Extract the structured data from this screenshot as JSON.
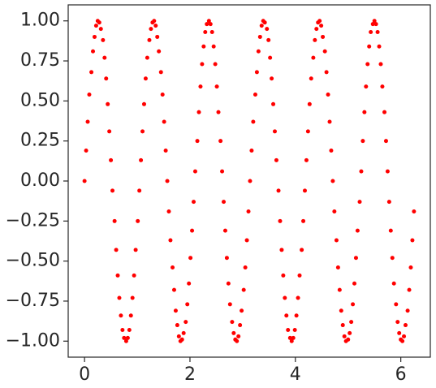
{
  "chart_data": {
    "type": "scatter",
    "color": "#ff0000",
    "x": [
      0,
      0.03,
      0.06,
      0.09,
      0.13,
      0.16,
      0.19,
      0.22,
      0.25,
      0.28,
      0.31,
      0.35,
      0.38,
      0.41,
      0.44,
      0.47,
      0.5,
      0.53,
      0.57,
      0.6,
      0.63,
      0.66,
      0.69,
      0.72,
      0.75,
      0.79,
      0.82,
      0.85,
      0.88,
      0.91,
      0.94,
      0.97,
      1.01,
      1.04,
      1.07,
      1.1,
      1.13,
      1.16,
      1.19,
      1.23,
      1.26,
      1.29,
      1.32,
      1.35,
      1.38,
      1.41,
      1.45,
      1.48,
      1.51,
      1.54,
      1.57,
      1.6,
      1.63,
      1.67,
      1.7,
      1.73,
      1.76,
      1.79,
      1.82,
      1.85,
      1.88,
      1.92,
      1.95,
      1.98,
      2.01,
      2.04,
      2.07,
      2.1,
      2.14,
      2.17,
      2.2,
      2.23,
      2.26,
      2.29,
      2.32,
      2.36,
      2.39,
      2.42,
      2.45,
      2.48,
      2.51,
      2.54,
      2.58,
      2.61,
      2.64,
      2.67,
      2.7,
      2.73,
      2.76,
      2.8,
      2.83,
      2.86,
      2.89,
      2.92,
      2.95,
      2.98,
      3.02,
      3.05,
      3.08,
      3.11,
      3.14,
      3.17,
      3.2,
      3.24,
      3.27,
      3.3,
      3.33,
      3.36,
      3.39,
      3.42,
      3.46,
      3.49,
      3.52,
      3.55,
      3.58,
      3.61,
      3.64,
      3.68,
      3.71,
      3.74,
      3.77,
      3.8,
      3.83,
      3.86,
      3.9,
      3.93,
      3.96,
      3.99,
      4.02,
      4.05,
      4.08,
      4.12,
      4.15,
      4.18,
      4.21,
      4.24,
      4.27,
      4.3,
      4.34,
      4.37,
      4.4,
      4.43,
      4.46,
      4.49,
      4.52,
      4.56,
      4.59,
      4.62,
      4.65,
      4.68,
      4.71,
      4.74,
      4.78,
      4.81,
      4.84,
      4.87,
      4.9,
      4.93,
      4.96,
      5,
      5.03,
      5.06,
      5.09,
      5.12,
      5.15,
      5.18,
      5.22,
      5.25,
      5.28,
      5.31,
      5.34,
      5.37,
      5.4,
      5.43,
      5.47,
      5.5,
      5.53,
      5.56,
      5.59,
      5.62,
      5.65,
      5.69,
      5.72,
      5.75,
      5.78,
      5.81,
      5.84,
      5.87,
      5.91,
      5.94,
      5.97,
      6,
      6.03,
      6.06,
      6.09,
      6.13,
      6.16,
      6.19,
      6.22,
      6.25
    ],
    "values": [
      0,
      0.19,
      0.37,
      0.54,
      0.68,
      0.81,
      0.9,
      0.97,
      1,
      0.99,
      0.95,
      0.88,
      0.77,
      0.64,
      0.48,
      0.31,
      0.13,
      -0.06,
      -0.25,
      -0.43,
      -0.59,
      -0.73,
      -0.84,
      -0.93,
      -0.98,
      -1,
      -0.98,
      -0.93,
      -0.84,
      -0.73,
      -0.59,
      -0.43,
      -0.25,
      -0.06,
      0.13,
      0.31,
      0.48,
      0.64,
      0.77,
      0.88,
      0.95,
      0.99,
      1,
      0.97,
      0.9,
      0.81,
      0.68,
      0.54,
      0.37,
      0.19,
      0,
      -0.19,
      -0.37,
      -0.54,
      -0.68,
      -0.81,
      -0.9,
      -0.97,
      -1,
      -0.99,
      -0.95,
      -0.88,
      -0.77,
      -0.64,
      -0.48,
      -0.31,
      -0.13,
      0.06,
      0.25,
      0.43,
      0.59,
      0.73,
      0.84,
      0.93,
      0.98,
      1,
      0.98,
      0.93,
      0.84,
      0.73,
      0.59,
      0.43,
      0.25,
      0.06,
      -0.13,
      -0.31,
      -0.48,
      -0.64,
      -0.77,
      -0.88,
      -0.95,
      -0.99,
      -1,
      -0.97,
      -0.9,
      -0.81,
      -0.68,
      -0.54,
      -0.37,
      -0.19,
      0,
      0.19,
      0.37,
      0.54,
      0.68,
      0.81,
      0.9,
      0.97,
      1,
      0.99,
      0.95,
      0.88,
      0.77,
      0.64,
      0.48,
      0.31,
      0.13,
      -0.06,
      -0.25,
      -0.43,
      -0.59,
      -0.73,
      -0.84,
      -0.93,
      -0.98,
      -1,
      -0.98,
      -0.93,
      -0.84,
      -0.73,
      -0.59,
      -0.43,
      -0.25,
      -0.06,
      0.13,
      0.31,
      0.48,
      0.64,
      0.77,
      0.88,
      0.95,
      0.99,
      1,
      0.97,
      0.9,
      0.81,
      0.68,
      0.54,
      0.37,
      0.19,
      0,
      -0.19,
      -0.37,
      -0.54,
      -0.68,
      -0.81,
      -0.9,
      -0.97,
      -1,
      -0.99,
      -0.95,
      -0.88,
      -0.77,
      -0.64,
      -0.48,
      -0.31,
      -0.13,
      0.06,
      0.25,
      0.43,
      0.59,
      0.73,
      0.84,
      0.93,
      0.98,
      1,
      0.98,
      0.93,
      0.84,
      0.73,
      0.59,
      0.43,
      0.25,
      0.06,
      -0.13,
      -0.31,
      -0.48,
      -0.64,
      -0.77,
      -0.88,
      -0.95,
      -0.99,
      -1,
      -0.97,
      -0.9,
      -0.81,
      -0.68,
      -0.54,
      -0.37,
      -0.19
    ],
    "xlim": [
      -0.31,
      6.56
    ],
    "ylim": [
      -1.1,
      1.1
    ],
    "xticks": [
      0,
      2,
      4,
      6
    ],
    "yticks": [
      {
        "value": -1,
        "label": "−1.00"
      },
      {
        "value": -0.75,
        "label": "−0.75"
      },
      {
        "value": -0.5,
        "label": "−0.50"
      },
      {
        "value": -0.25,
        "label": "−0.25"
      },
      {
        "value": 0,
        "label": "0.00"
      },
      {
        "value": 0.25,
        "label": "0.25"
      },
      {
        "value": 0.5,
        "label": "0.50"
      },
      {
        "value": 0.75,
        "label": "0.75"
      },
      {
        "value": 1,
        "label": "1.00"
      }
    ]
  }
}
